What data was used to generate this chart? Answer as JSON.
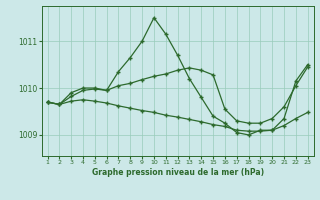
{
  "x": [
    1,
    2,
    3,
    4,
    5,
    6,
    7,
    8,
    9,
    10,
    11,
    12,
    13,
    14,
    15,
    16,
    17,
    18,
    19,
    20,
    21,
    22,
    23
  ],
  "line1": [
    1009.7,
    1009.65,
    1009.9,
    1010.0,
    1010.0,
    1009.95,
    1010.35,
    1010.65,
    1011.0,
    1011.5,
    1011.15,
    1010.7,
    1010.2,
    1009.8,
    1009.4,
    1009.25,
    1009.05,
    1009.0,
    1009.1,
    1009.1,
    1009.35,
    1010.15,
    1010.5
  ],
  "line2": [
    1009.7,
    1009.65,
    1009.82,
    1009.95,
    1009.98,
    1009.95,
    1010.05,
    1010.1,
    1010.18,
    1010.25,
    1010.3,
    1010.38,
    1010.43,
    1010.38,
    1010.28,
    1009.55,
    1009.3,
    1009.25,
    1009.25,
    1009.35,
    1009.6,
    1010.05,
    1010.45
  ],
  "line3": [
    1009.7,
    1009.65,
    1009.72,
    1009.75,
    1009.72,
    1009.68,
    1009.62,
    1009.57,
    1009.52,
    1009.48,
    1009.42,
    1009.38,
    1009.33,
    1009.28,
    1009.22,
    1009.18,
    1009.1,
    1009.08,
    1009.08,
    1009.1,
    1009.2,
    1009.35,
    1009.48
  ],
  "line_color": "#2d6a2d",
  "bg_color": "#cce8e8",
  "grid_color": "#99ccbb",
  "title": "Graphe pression niveau de la mer (hPa)",
  "yticks": [
    1009,
    1010,
    1011
  ],
  "ylim": [
    1008.55,
    1011.75
  ],
  "xlim": [
    0.5,
    23.5
  ],
  "xticks": [
    1,
    2,
    3,
    4,
    5,
    6,
    7,
    8,
    9,
    10,
    11,
    12,
    13,
    14,
    15,
    16,
    17,
    18,
    19,
    20,
    21,
    22,
    23
  ]
}
